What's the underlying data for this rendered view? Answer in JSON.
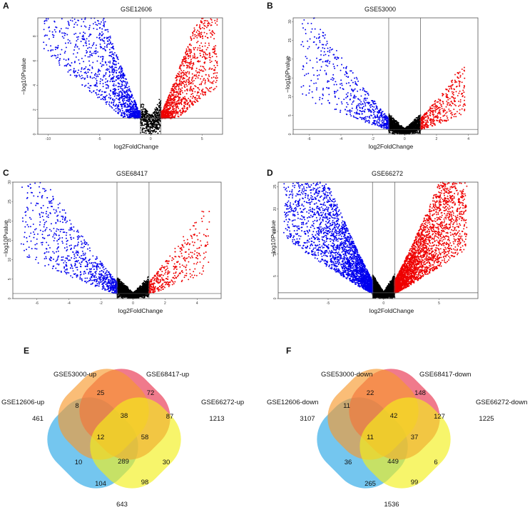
{
  "chart_data": [
    {
      "type": "scatter",
      "panel": "A",
      "title": "GSE12606",
      "xlabel": "log2FoldChange",
      "ylabel": "−log10Pvalue",
      "xlim": [
        -11,
        7
      ],
      "ylim": [
        0,
        9.5
      ],
      "xticks": [
        -10,
        -5,
        0,
        5
      ],
      "yticks": [
        0,
        2,
        4,
        6,
        8
      ],
      "fc_cutoff": 1,
      "p_cutoff": 1.3,
      "shape": 1.35,
      "up_extent": 6.5,
      "down_extent": 10.5,
      "n_up": 1300,
      "n_down": 1600,
      "n_ns": 450,
      "series": [
        {
          "name": "down",
          "color": "#0000ee"
        },
        {
          "name": "not significant",
          "color": "#000000"
        },
        {
          "name": "up",
          "color": "#ee0000"
        }
      ]
    },
    {
      "type": "scatter",
      "panel": "B",
      "title": "GSE53000",
      "xlabel": "log2FoldChange",
      "ylabel": "−log10Pvalue",
      "xlim": [
        -7,
        4.6
      ],
      "ylim": [
        0,
        31
      ],
      "xticks": [
        -6,
        -4,
        -2,
        0,
        2,
        4
      ],
      "yticks": [
        0,
        5,
        10,
        15,
        20,
        25,
        30
      ],
      "fc_cutoff": 1,
      "p_cutoff": 1.3,
      "shape": 1.05,
      "up_extent": 3.8,
      "down_extent": 6.5,
      "n_up": 420,
      "n_down": 600,
      "n_ns": 1600,
      "series": [
        {
          "name": "down",
          "color": "#0000ee"
        },
        {
          "name": "not significant",
          "color": "#000000"
        },
        {
          "name": "up",
          "color": "#ee0000"
        }
      ]
    },
    {
      "type": "scatter",
      "panel": "C",
      "title": "GSE68417",
      "xlabel": "log2FoldChange",
      "ylabel": "−log10Pvalue",
      "xlim": [
        -7.5,
        5.5
      ],
      "ylim": [
        0,
        30
      ],
      "xticks": [
        -6,
        -4,
        -2,
        0,
        2,
        4
      ],
      "yticks": [
        0,
        5,
        10,
        15,
        20,
        25,
        30
      ],
      "fc_cutoff": 1,
      "p_cutoff": 1.3,
      "shape": 1.1,
      "up_extent": 4.8,
      "down_extent": 7,
      "n_up": 380,
      "n_down": 820,
      "n_ns": 1900,
      "series": [
        {
          "name": "down",
          "color": "#0000ee"
        },
        {
          "name": "not significant",
          "color": "#000000"
        },
        {
          "name": "up",
          "color": "#ee0000"
        }
      ]
    },
    {
      "type": "scatter",
      "panel": "D",
      "title": "GSE66272",
      "xlabel": "log2FoldChange",
      "ylabel": "−log10Pvalue",
      "xlim": [
        -9.5,
        8.5
      ],
      "ylim": [
        0,
        26
      ],
      "xticks": [
        -5,
        0,
        5
      ],
      "yticks": [
        0,
        5,
        10,
        15,
        20,
        25
      ],
      "fc_cutoff": 1,
      "p_cutoff": 1.3,
      "shape": 1.2,
      "up_extent": 7.5,
      "down_extent": 9,
      "n_up": 3000,
      "n_down": 3000,
      "n_ns": 2600,
      "series": [
        {
          "name": "down",
          "color": "#0000ee"
        },
        {
          "name": "not significant",
          "color": "#000000"
        },
        {
          "name": "up",
          "color": "#ee0000"
        }
      ]
    },
    {
      "type": "venn",
      "panel": "E",
      "sets": [
        "GSE12606-up",
        "GSE53000-up",
        "GSE68417-up",
        "GSE66272-up"
      ],
      "colors": [
        "#2aa7e6",
        "#e8334f",
        "#f8992e",
        "#f3f01b"
      ],
      "regions": {
        "A": 461,
        "B": 25,
        "C": 72,
        "D": 1213,
        "AB": 8,
        "BC": 38,
        "CD": 87,
        "ABC": 12,
        "BCD": 58,
        "ABCD": 289,
        "AC": 10,
        "BD": 30,
        "ABD": 98,
        "ACD": 104,
        "AD": 643
      }
    },
    {
      "type": "venn",
      "panel": "F",
      "sets": [
        "GSE12606-down",
        "GSE53000-down",
        "GSE68417-down",
        "GSE66272-down"
      ],
      "colors": [
        "#2aa7e6",
        "#e8334f",
        "#f8992e",
        "#f3f01b"
      ],
      "regions": {
        "A": 3107,
        "B": 22,
        "C": 148,
        "D": 1225,
        "AB": 11,
        "BC": 42,
        "CD": 127,
        "ABC": 11,
        "BCD": 37,
        "ABCD": 449,
        "AC": 36,
        "BD": 6,
        "ABD": 99,
        "ACD": 265,
        "AD": 1536
      }
    }
  ]
}
